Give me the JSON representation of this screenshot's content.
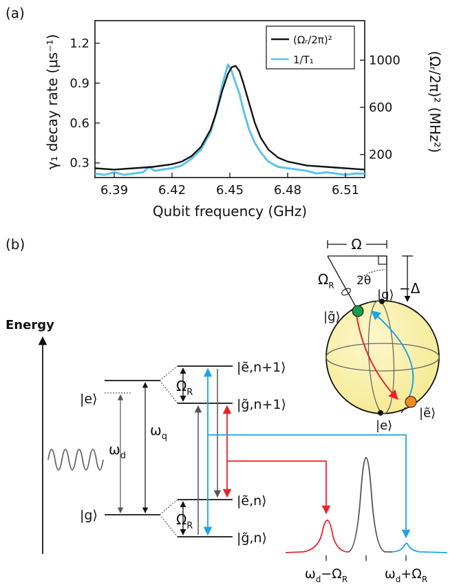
{
  "panel_a": {
    "label": "(a)",
    "ylabel_left": "γ₁ decay rate (μs⁻¹)",
    "ylabel_right": "(Ωᵣ/2π)² (MHz²)",
    "xlabel": "Qubit frequency (GHz)",
    "legend": [
      {
        "label": "(Ωᵣ/2π)²",
        "color": "#111111"
      },
      {
        "label": "1/T₁",
        "color": "#5bc3ea"
      }
    ]
  },
  "panel_b": {
    "label": "(b)",
    "energy_label": "Energy",
    "bare_states": {
      "e": "|e⟩",
      "g": "|g⟩"
    },
    "omega_d": "ω_d",
    "omega_q": "ω_q",
    "dressed_states": [
      "|ẽ,n+1⟩",
      "|g̃,n+1⟩",
      "|ẽ,n⟩",
      "|g̃,n⟩"
    ],
    "rabi_label": "Ω_R",
    "sideband_left": "ω_d−Ω_R",
    "sideband_right": "ω_d+Ω_R",
    "bloch": {
      "omega": "Ω",
      "omega_r": "Ω_R",
      "two_theta": "2θ",
      "minus_delta": "−Δ",
      "g": "|g⟩",
      "e": "|e⟩",
      "g_dressed": "|g̃⟩",
      "e_dressed": "|ẽ⟩"
    },
    "colors": {
      "red": "#e8232a",
      "blue": "#1aa7e0",
      "gray": "#555555",
      "sphere": "#fbf2a9",
      "green": "#1a9a4a",
      "orange": "#f08a24"
    }
  },
  "chart_data": {
    "type": "line",
    "xlabel": "Qubit frequency (GHz)",
    "ylabel": "γ₁ decay rate (μs⁻¹)",
    "y2label": "(Ωᵣ/2π)² (MHz²)",
    "xlim": [
      6.38,
      6.52
    ],
    "ylim": [
      0.19,
      1.37
    ],
    "y2lim": [
      5,
      1335
    ],
    "x_ticks": [
      "6.39",
      "6.42",
      "6.45",
      "6.48",
      "6.51"
    ],
    "y_ticks": [
      "0.3",
      "0.6",
      "0.9",
      "1.2"
    ],
    "y2_ticks": [
      "200",
      "600",
      "1000"
    ],
    "legend_position": "top-right",
    "series": [
      {
        "name": "(Ωᵣ/2π)²",
        "color": "#111111",
        "axis": "left",
        "x": [
          6.38,
          6.39,
          6.4,
          6.41,
          6.42,
          6.425,
          6.43,
          6.435,
          6.44,
          6.443,
          6.446,
          6.449,
          6.451,
          6.453,
          6.455,
          6.457,
          6.46,
          6.463,
          6.466,
          6.47,
          6.475,
          6.48,
          6.49,
          6.5,
          6.51,
          6.52
        ],
        "y": [
          0.26,
          0.25,
          0.26,
          0.27,
          0.29,
          0.31,
          0.35,
          0.42,
          0.55,
          0.68,
          0.84,
          0.97,
          1.02,
          1.03,
          0.99,
          0.9,
          0.75,
          0.6,
          0.49,
          0.4,
          0.34,
          0.31,
          0.28,
          0.27,
          0.26,
          0.25
        ]
      },
      {
        "name": "1/T₁",
        "color": "#5bc3ea",
        "axis": "left",
        "x": [
          6.38,
          6.385,
          6.39,
          6.395,
          6.4,
          6.405,
          6.408,
          6.411,
          6.415,
          6.42,
          6.425,
          6.43,
          6.435,
          6.44,
          6.443,
          6.446,
          6.449,
          6.451,
          6.453,
          6.455,
          6.457,
          6.46,
          6.463,
          6.466,
          6.47,
          6.475,
          6.48,
          6.485,
          6.49,
          6.495,
          6.5,
          6.505,
          6.51,
          6.515,
          6.52
        ],
        "y": [
          0.22,
          0.21,
          0.23,
          0.21,
          0.22,
          0.23,
          0.27,
          0.24,
          0.25,
          0.26,
          0.28,
          0.33,
          0.4,
          0.53,
          0.68,
          0.88,
          1.04,
          0.99,
          0.9,
          0.82,
          0.7,
          0.55,
          0.45,
          0.38,
          0.31,
          0.27,
          0.26,
          0.25,
          0.24,
          0.22,
          0.23,
          0.22,
          0.21,
          0.22,
          0.22
        ]
      }
    ]
  }
}
